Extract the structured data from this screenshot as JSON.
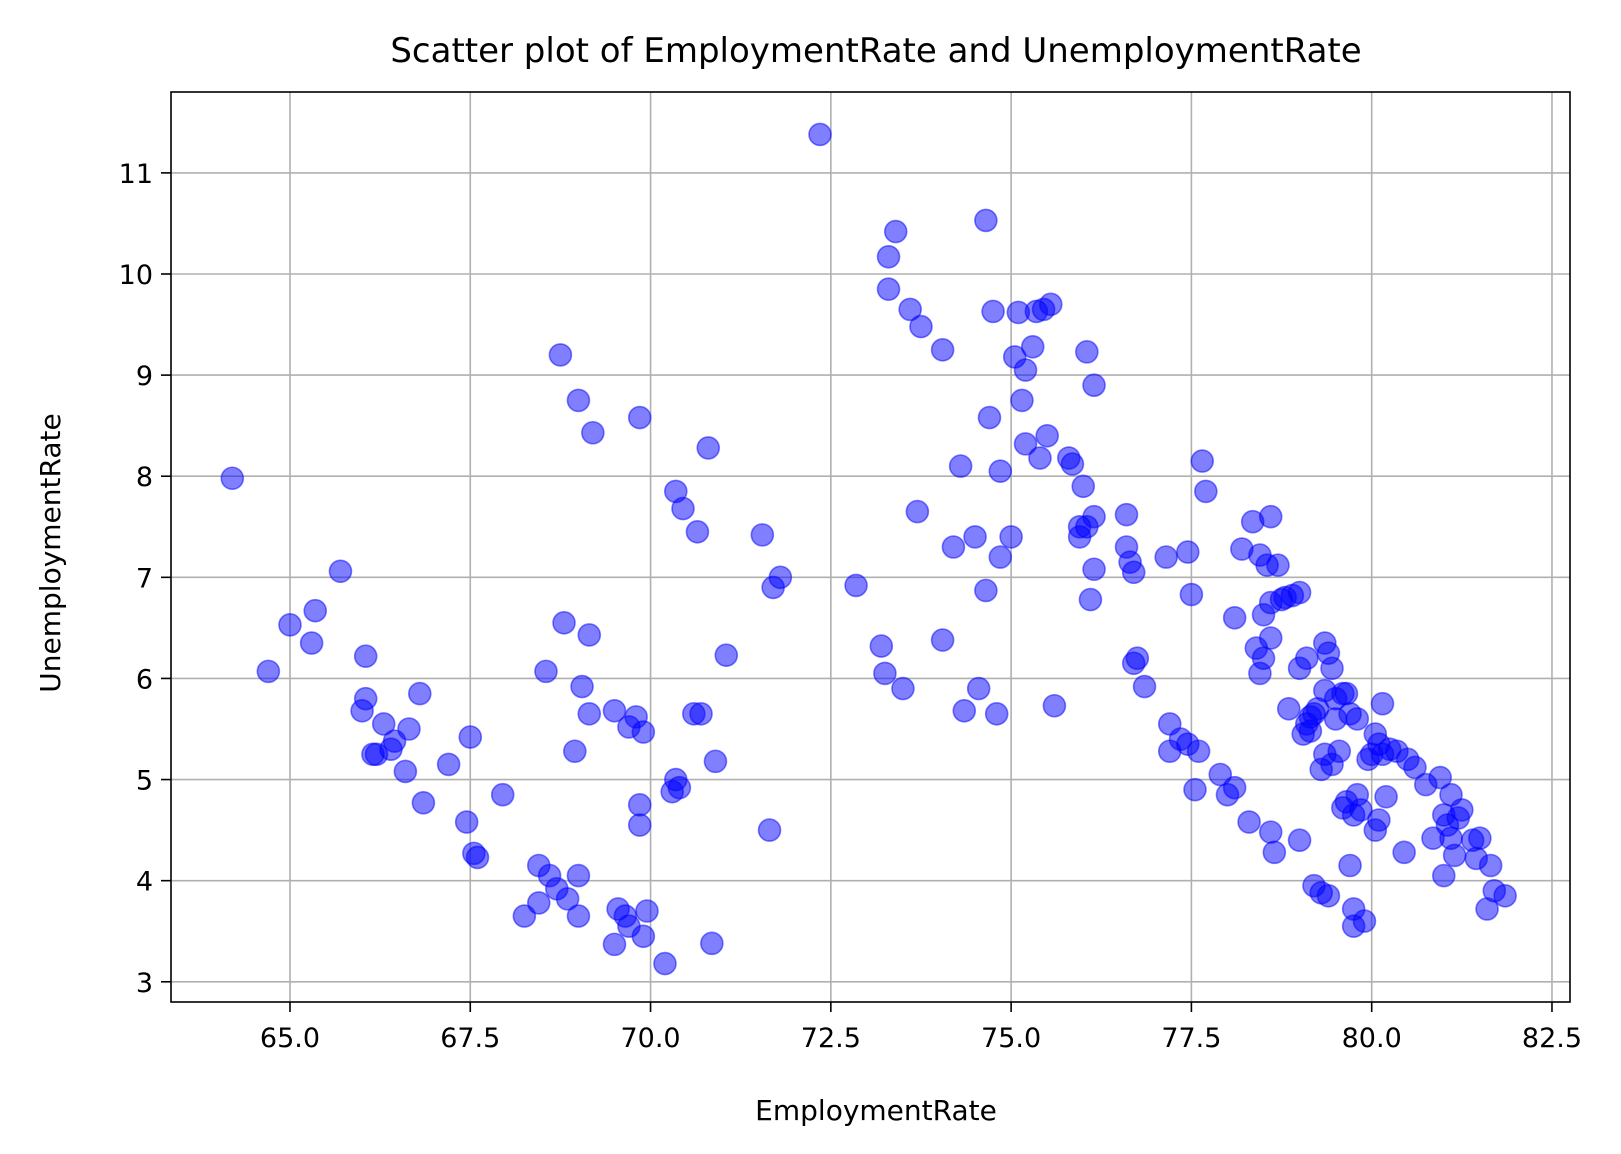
{
  "chart_data": {
    "type": "scatter",
    "title": "Scatter plot of EmploymentRate and UnemploymentRate",
    "xlabel": "EmploymentRate",
    "ylabel": "UnemploymentRate",
    "xlim": [
      63.35,
      82.75
    ],
    "ylim": [
      2.8,
      11.8
    ],
    "xticks": [
      65.0,
      67.5,
      70.0,
      72.5,
      75.0,
      77.5,
      80.0,
      82.5
    ],
    "xtick_labels": [
      "65.0",
      "67.5",
      "70.0",
      "72.5",
      "75.0",
      "77.5",
      "80.0",
      "82.5"
    ],
    "yticks": [
      3,
      4,
      5,
      6,
      7,
      8,
      9,
      10,
      11
    ],
    "ytick_labels": [
      "3",
      "4",
      "5",
      "6",
      "7",
      "8",
      "9",
      "10",
      "11"
    ],
    "grid": true,
    "colors": {
      "point": "#0000ff",
      "grid": "#b0b0b0",
      "axis": "#000000"
    },
    "points": [
      [
        64.2,
        7.98
      ],
      [
        64.7,
        6.07
      ],
      [
        65.0,
        6.53
      ],
      [
        65.3,
        6.35
      ],
      [
        65.35,
        6.67
      ],
      [
        65.7,
        7.06
      ],
      [
        66.0,
        5.68
      ],
      [
        66.05,
        5.8
      ],
      [
        66.05,
        6.22
      ],
      [
        66.15,
        5.25
      ],
      [
        66.2,
        5.25
      ],
      [
        66.3,
        5.55
      ],
      [
        66.4,
        5.3
      ],
      [
        66.45,
        5.38
      ],
      [
        66.6,
        5.08
      ],
      [
        66.65,
        5.5
      ],
      [
        66.8,
        5.85
      ],
      [
        66.85,
        4.77
      ],
      [
        67.2,
        5.15
      ],
      [
        67.45,
        4.58
      ],
      [
        67.5,
        5.42
      ],
      [
        67.55,
        4.27
      ],
      [
        67.6,
        4.23
      ],
      [
        67.95,
        4.85
      ],
      [
        68.25,
        3.65
      ],
      [
        68.45,
        4.15
      ],
      [
        68.45,
        3.78
      ],
      [
        68.55,
        6.07
      ],
      [
        68.6,
        4.05
      ],
      [
        68.7,
        3.92
      ],
      [
        68.75,
        9.2
      ],
      [
        68.8,
        6.55
      ],
      [
        68.85,
        3.82
      ],
      [
        68.95,
        5.28
      ],
      [
        69.0,
        3.65
      ],
      [
        69.0,
        4.05
      ],
      [
        69.0,
        8.75
      ],
      [
        69.05,
        5.92
      ],
      [
        69.15,
        5.65
      ],
      [
        69.15,
        6.43
      ],
      [
        69.2,
        8.43
      ],
      [
        69.5,
        5.68
      ],
      [
        69.5,
        3.37
      ],
      [
        69.55,
        3.72
      ],
      [
        69.65,
        3.65
      ],
      [
        69.7,
        5.52
      ],
      [
        69.7,
        3.55
      ],
      [
        69.8,
        5.62
      ],
      [
        69.85,
        4.55
      ],
      [
        69.85,
        4.75
      ],
      [
        69.85,
        8.58
      ],
      [
        69.9,
        5.47
      ],
      [
        69.9,
        3.45
      ],
      [
        69.95,
        3.7
      ],
      [
        70.2,
        3.18
      ],
      [
        70.3,
        4.88
      ],
      [
        70.35,
        5.0
      ],
      [
        70.35,
        7.85
      ],
      [
        70.4,
        4.92
      ],
      [
        70.45,
        7.68
      ],
      [
        70.6,
        5.65
      ],
      [
        70.65,
        7.45
      ],
      [
        70.7,
        5.65
      ],
      [
        70.8,
        8.28
      ],
      [
        70.85,
        3.38
      ],
      [
        70.9,
        5.18
      ],
      [
        71.05,
        6.23
      ],
      [
        71.55,
        7.42
      ],
      [
        71.65,
        4.5
      ],
      [
        71.7,
        6.9
      ],
      [
        71.8,
        7.0
      ],
      [
        72.35,
        11.38
      ],
      [
        72.85,
        6.92
      ],
      [
        73.2,
        6.32
      ],
      [
        73.25,
        6.05
      ],
      [
        73.3,
        9.85
      ],
      [
        73.3,
        10.17
      ],
      [
        73.4,
        10.42
      ],
      [
        73.5,
        5.9
      ],
      [
        73.6,
        9.65
      ],
      [
        73.7,
        7.65
      ],
      [
        73.75,
        9.48
      ],
      [
        74.05,
        9.25
      ],
      [
        74.05,
        6.38
      ],
      [
        74.2,
        7.3
      ],
      [
        74.3,
        8.1
      ],
      [
        74.35,
        5.68
      ],
      [
        74.5,
        7.4
      ],
      [
        74.55,
        5.9
      ],
      [
        74.65,
        6.87
      ],
      [
        74.65,
        10.53
      ],
      [
        74.7,
        8.58
      ],
      [
        74.75,
        9.63
      ],
      [
        74.8,
        5.65
      ],
      [
        74.85,
        7.2
      ],
      [
        74.85,
        8.05
      ],
      [
        75.0,
        7.4
      ],
      [
        75.05,
        9.18
      ],
      [
        75.1,
        9.62
      ],
      [
        75.15,
        8.75
      ],
      [
        75.2,
        9.05
      ],
      [
        75.2,
        8.32
      ],
      [
        75.3,
        9.28
      ],
      [
        75.35,
        9.63
      ],
      [
        75.4,
        8.18
      ],
      [
        75.45,
        9.65
      ],
      [
        75.5,
        8.4
      ],
      [
        75.55,
        9.7
      ],
      [
        75.6,
        5.73
      ],
      [
        75.8,
        8.18
      ],
      [
        75.85,
        8.12
      ],
      [
        75.95,
        7.5
      ],
      [
        75.95,
        7.4
      ],
      [
        76.0,
        7.9
      ],
      [
        76.05,
        7.5
      ],
      [
        76.05,
        9.23
      ],
      [
        76.1,
        6.78
      ],
      [
        76.15,
        8.9
      ],
      [
        76.15,
        7.6
      ],
      [
        76.15,
        7.08
      ],
      [
        76.6,
        7.62
      ],
      [
        76.6,
        7.3
      ],
      [
        76.65,
        7.15
      ],
      [
        76.7,
        7.05
      ],
      [
        76.7,
        6.15
      ],
      [
        76.75,
        6.2
      ],
      [
        76.85,
        5.92
      ],
      [
        77.15,
        7.2
      ],
      [
        77.2,
        5.55
      ],
      [
        77.2,
        5.28
      ],
      [
        77.35,
        5.4
      ],
      [
        77.45,
        7.25
      ],
      [
        77.45,
        5.35
      ],
      [
        77.5,
        6.83
      ],
      [
        77.55,
        4.9
      ],
      [
        77.6,
        5.28
      ],
      [
        77.65,
        8.15
      ],
      [
        77.7,
        7.85
      ],
      [
        77.9,
        5.05
      ],
      [
        78.0,
        4.85
      ],
      [
        78.1,
        4.92
      ],
      [
        78.1,
        6.6
      ],
      [
        78.2,
        7.28
      ],
      [
        78.3,
        4.58
      ],
      [
        78.35,
        7.55
      ],
      [
        78.4,
        6.3
      ],
      [
        78.45,
        6.05
      ],
      [
        78.45,
        7.22
      ],
      [
        78.5,
        6.2
      ],
      [
        78.5,
        6.63
      ],
      [
        78.55,
        7.12
      ],
      [
        78.6,
        4.48
      ],
      [
        78.6,
        6.75
      ],
      [
        78.6,
        6.4
      ],
      [
        78.65,
        4.28
      ],
      [
        78.6,
        7.6
      ],
      [
        78.7,
        7.12
      ],
      [
        78.75,
        6.78
      ],
      [
        78.8,
        6.8
      ],
      [
        78.85,
        5.7
      ],
      [
        78.9,
        6.82
      ],
      [
        79.0,
        6.85
      ],
      [
        79.0,
        4.4
      ],
      [
        79.0,
        6.1
      ],
      [
        79.05,
        5.45
      ],
      [
        79.1,
        6.2
      ],
      [
        79.1,
        5.55
      ],
      [
        79.15,
        5.62
      ],
      [
        79.15,
        5.48
      ],
      [
        79.2,
        3.95
      ],
      [
        79.2,
        5.65
      ],
      [
        79.25,
        5.7
      ],
      [
        79.3,
        3.88
      ],
      [
        79.3,
        5.1
      ],
      [
        79.35,
        6.35
      ],
      [
        79.35,
        5.88
      ],
      [
        79.35,
        5.25
      ],
      [
        79.4,
        3.85
      ],
      [
        79.4,
        6.25
      ],
      [
        79.45,
        5.15
      ],
      [
        79.45,
        6.1
      ],
      [
        79.5,
        5.8
      ],
      [
        79.5,
        5.6
      ],
      [
        79.55,
        5.28
      ],
      [
        79.6,
        5.85
      ],
      [
        79.6,
        4.72
      ],
      [
        79.65,
        4.78
      ],
      [
        79.65,
        5.85
      ],
      [
        79.7,
        4.15
      ],
      [
        79.7,
        5.65
      ],
      [
        79.75,
        4.65
      ],
      [
        79.75,
        3.72
      ],
      [
        79.75,
        3.55
      ],
      [
        79.8,
        5.6
      ],
      [
        79.8,
        4.85
      ],
      [
        79.85,
        4.7
      ],
      [
        79.9,
        3.6
      ],
      [
        79.95,
        5.2
      ],
      [
        80.0,
        5.25
      ],
      [
        80.05,
        4.5
      ],
      [
        80.05,
        5.45
      ],
      [
        80.1,
        4.6
      ],
      [
        80.1,
        5.35
      ],
      [
        80.15,
        5.75
      ],
      [
        80.15,
        5.25
      ],
      [
        80.2,
        4.83
      ],
      [
        80.25,
        5.3
      ],
      [
        80.35,
        5.28
      ],
      [
        80.45,
        4.28
      ],
      [
        80.5,
        5.2
      ],
      [
        80.6,
        5.12
      ],
      [
        80.75,
        4.95
      ],
      [
        80.85,
        4.42
      ],
      [
        80.95,
        5.02
      ],
      [
        81.0,
        4.05
      ],
      [
        81.0,
        4.65
      ],
      [
        81.05,
        4.55
      ],
      [
        81.1,
        4.85
      ],
      [
        81.1,
        4.42
      ],
      [
        81.15,
        4.25
      ],
      [
        81.2,
        4.62
      ],
      [
        81.25,
        4.7
      ],
      [
        81.4,
        4.4
      ],
      [
        81.45,
        4.22
      ],
      [
        81.5,
        4.42
      ],
      [
        81.6,
        3.72
      ],
      [
        81.65,
        4.15
      ],
      [
        81.7,
        3.9
      ],
      [
        81.85,
        3.85
      ]
    ]
  }
}
